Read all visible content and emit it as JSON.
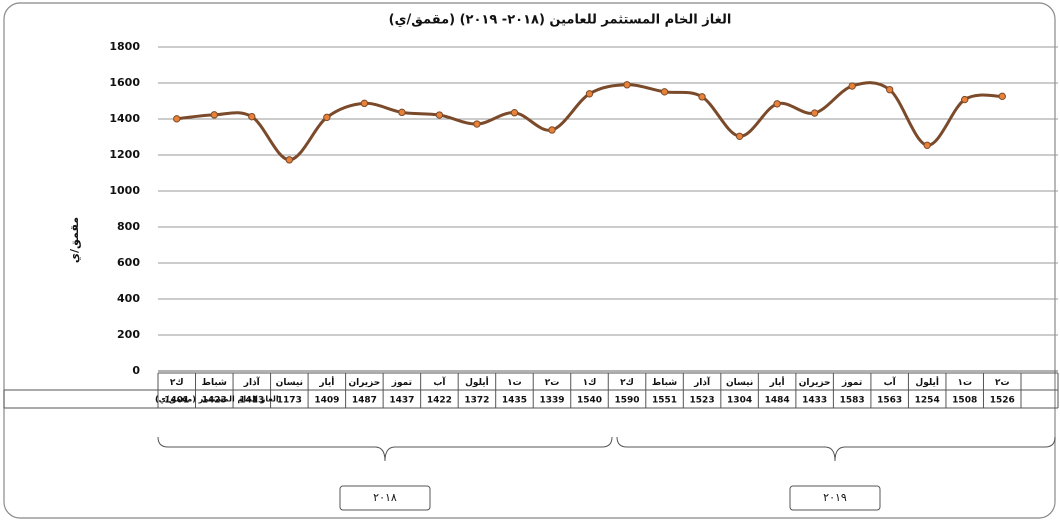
{
  "chart_data": {
    "type": "line",
    "title": "الغاز الخام المستثمر للعامين (٢٠١٨- ٢٠١٩) (مقمق/ي)",
    "y_label": "مقمق/ي",
    "categories": [
      "ك٢",
      "شباط",
      "آذار",
      "نيسان",
      "أيار",
      "حزيران",
      "تموز",
      "آب",
      "أيلول",
      "ت١",
      "ت٢",
      "ك١",
      "ك٢",
      "شباط",
      "آذار",
      "نيسان",
      "أيار",
      "حزيران",
      "تموز",
      "آب",
      "أيلول",
      "ت١",
      "ت٢"
    ],
    "series": [
      {
        "name": "الغاز الخام المستثمر (مقمق/ي)",
        "color": "#7a4a2a",
        "marker_color": "#e8823a",
        "values": [
          1401,
          1423,
          1413,
          1173,
          1409,
          1487,
          1437,
          1422,
          1372,
          1435,
          1339,
          1540,
          1590,
          1551,
          1523,
          1304,
          1484,
          1433,
          1583,
          1563,
          1254,
          1508,
          1526
        ]
      }
    ],
    "groups": [
      "٢٠١٨",
      "٢٠١٩"
    ],
    "ylim": [
      0,
      1800
    ],
    "yticks": [
      0,
      200,
      400,
      600,
      800,
      1000,
      1200,
      1400,
      1600,
      1800
    ],
    "grid": true
  }
}
